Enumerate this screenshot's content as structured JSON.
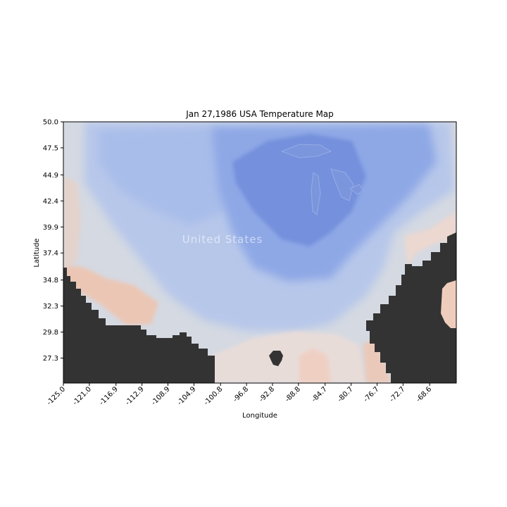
{
  "chart_data": {
    "type": "heatmap",
    "title": "Jan 27,1986 USA Temperature Map",
    "xlabel": "Longitude",
    "ylabel": "Latitude",
    "xlim": [
      -125.0,
      -64.5
    ],
    "ylim": [
      24.9,
      50.0
    ],
    "x_ticks": [
      "-125.0",
      "-121.0",
      "-116.9",
      "-112.9",
      "-108.9",
      "-104.9",
      "-100.8",
      "-96.8",
      "-92.8",
      "-88.8",
      "-84.7",
      "-80.7",
      "-76.7",
      "-72.7",
      "-68.6"
    ],
    "x_tick_values": [
      -125.0,
      -121.0,
      -116.9,
      -112.9,
      -108.9,
      -104.9,
      -100.8,
      -96.8,
      -92.8,
      -88.8,
      -84.7,
      -80.7,
      -76.7,
      -72.7,
      -68.6
    ],
    "y_ticks": [
      "50.0",
      "47.5",
      "44.9",
      "42.4",
      "39.9",
      "37.4",
      "34.8",
      "32.3",
      "29.8",
      "27.3"
    ],
    "y_tick_values": [
      50.0,
      47.5,
      44.9,
      42.4,
      39.9,
      37.4,
      34.8,
      32.3,
      29.8,
      27.3
    ],
    "basemap_label": "United States",
    "grid": false,
    "colors": {
      "cold_strong": "#6f8fdc",
      "cold": "#8ea8e6",
      "cool": "#b4c6ec",
      "neutral": "#d6dbe3",
      "warm": "#ecd6cc",
      "warm_strong": "#efc4b0",
      "no_data": "#333333"
    }
  }
}
